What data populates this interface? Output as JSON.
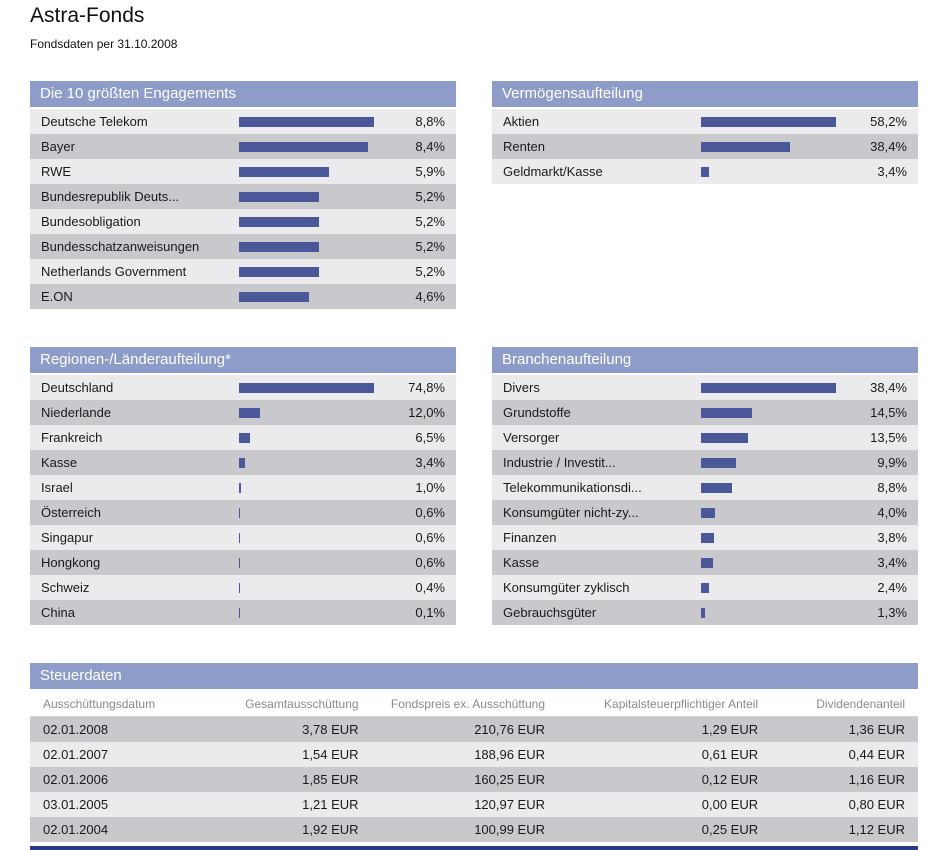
{
  "page": {
    "title": "Astra-Fonds",
    "subtitle": "Fondsdaten per 31.10.2008"
  },
  "colors": {
    "panel_header_bg": "#8d9cc8",
    "bar": "#4a5899",
    "row_light": "#ebebee",
    "row_dark": "#c9c9cd",
    "footer_bar": "#2c3a8c",
    "column_header_text": "#8b8b90"
  },
  "chart_data": [
    {
      "type": "bar",
      "orientation": "horizontal",
      "title": "Die 10 größten Engagements",
      "categories": [
        "Deutsche Telekom",
        "Bayer",
        "RWE",
        "Bundesrepublik Deuts...",
        "Bundesobligation",
        "Bundesschatzanweisungen",
        "Netherlands Government",
        "E.ON"
      ],
      "values": [
        8.8,
        8.4,
        5.9,
        5.2,
        5.2,
        5.2,
        5.2,
        4.6
      ],
      "value_labels": [
        "8,8%",
        "8,4%",
        "5,9%",
        "5,2%",
        "5,2%",
        "5,2%",
        "5,2%",
        "4,6%"
      ],
      "unit": "%"
    },
    {
      "type": "bar",
      "orientation": "horizontal",
      "title": "Vermögensaufteilung",
      "categories": [
        "Aktien",
        "Renten",
        "Geldmarkt/Kasse"
      ],
      "values": [
        58.2,
        38.4,
        3.4
      ],
      "value_labels": [
        "58,2%",
        "38,4%",
        "3,4%"
      ],
      "unit": "%"
    },
    {
      "type": "bar",
      "orientation": "horizontal",
      "title": "Regionen-/Länderaufteilung*",
      "categories": [
        "Deutschland",
        "Niederlande",
        "Frankreich",
        "Kasse",
        "Israel",
        "Österreich",
        "Singapur",
        "Hongkong",
        "Schweiz",
        "China"
      ],
      "values": [
        74.8,
        12.0,
        6.5,
        3.4,
        1.0,
        0.6,
        0.6,
        0.6,
        0.4,
        0.1
      ],
      "value_labels": [
        "74,8%",
        "12,0%",
        "6,5%",
        "3,4%",
        "1,0%",
        "0,6%",
        "0,6%",
        "0,6%",
        "0,4%",
        "0,1%"
      ],
      "unit": "%"
    },
    {
      "type": "bar",
      "orientation": "horizontal",
      "title": "Branchenaufteilung",
      "categories": [
        "Divers",
        "Grundstoffe",
        "Versorger",
        "Industrie / Investit...",
        "Telekommunikationsdi...",
        "Konsumgüter nicht-zy...",
        "Finanzen",
        "Kasse",
        "Konsumgüter zyklisch",
        "Gebrauchsgüter"
      ],
      "values": [
        38.4,
        14.5,
        13.5,
        9.9,
        8.8,
        4.0,
        3.8,
        3.4,
        2.4,
        1.3
      ],
      "value_labels": [
        "38,4%",
        "14,5%",
        "13,5%",
        "9,9%",
        "8,8%",
        "4,0%",
        "3,8%",
        "3,4%",
        "2,4%",
        "1,3%"
      ],
      "unit": "%"
    },
    {
      "type": "table",
      "title": "Steuerdaten",
      "columns": [
        "Ausschüttungsdatum",
        "Gesamtausschüttung",
        "Fondspreis ex. Ausschüttung",
        "Kapitalsteuerpflichtiger Anteil",
        "Dividendenanteil"
      ],
      "rows": [
        [
          "02.01.2008",
          "3,78 EUR",
          "210,76 EUR",
          "1,29 EUR",
          "1,36 EUR"
        ],
        [
          "02.01.2007",
          "1,54 EUR",
          "188,96 EUR",
          "0,61 EUR",
          "0,44 EUR"
        ],
        [
          "02.01.2006",
          "1,85 EUR",
          "160,25 EUR",
          "0,12 EUR",
          "1,16 EUR"
        ],
        [
          "03.01.2005",
          "1,21 EUR",
          "120,97 EUR",
          "0,00 EUR",
          "0,80 EUR"
        ],
        [
          "02.01.2004",
          "1,92 EUR",
          "100,99 EUR",
          "0,25 EUR",
          "1,12 EUR"
        ]
      ]
    }
  ]
}
